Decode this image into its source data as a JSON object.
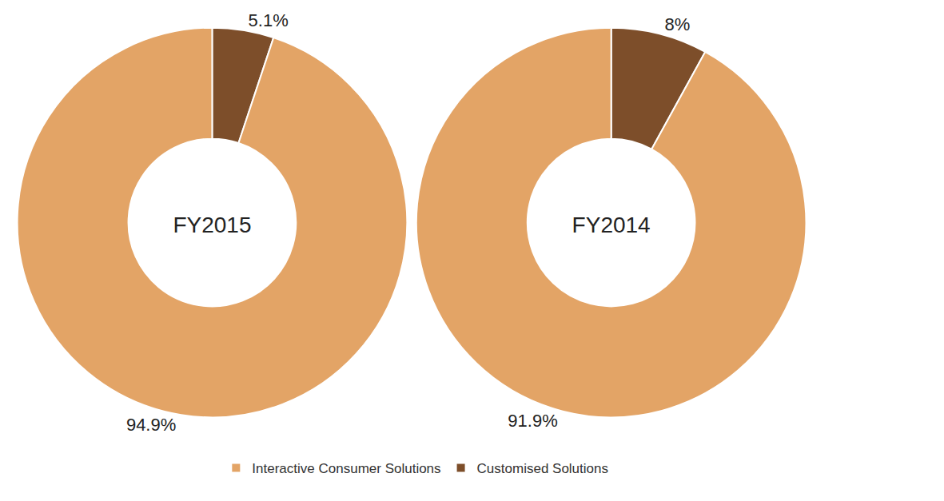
{
  "chart_data": [
    {
      "type": "pie",
      "title": "FY2015",
      "categories": [
        "Customised Solutions",
        "Interactive Consumer Solutions"
      ],
      "values": [
        5.1,
        94.9
      ],
      "value_labels": [
        "5.1%",
        "94.9%"
      ],
      "colors": [
        "#7d4e2a",
        "#e3a466"
      ],
      "data_labels": true,
      "legend": "bottom"
    },
    {
      "type": "pie",
      "title": "FY2014",
      "categories": [
        "Customised Solutions",
        "Interactive Consumer Solutions"
      ],
      "values": [
        8,
        91.9
      ],
      "value_labels": [
        "8%",
        "91.9%"
      ],
      "colors": [
        "#7d4e2a",
        "#e3a466"
      ],
      "data_labels": true,
      "legend": "bottom"
    }
  ]
}
